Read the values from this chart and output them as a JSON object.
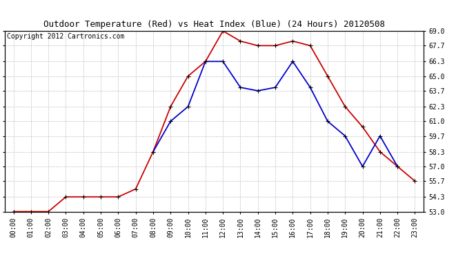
{
  "title": "Outdoor Temperature (Red) vs Heat Index (Blue) (24 Hours) 20120508",
  "copyright_text": "Copyright 2012 Cartronics.com",
  "hours": [
    0,
    1,
    2,
    3,
    4,
    5,
    6,
    7,
    8,
    9,
    10,
    11,
    12,
    13,
    14,
    15,
    16,
    17,
    18,
    19,
    20,
    21,
    22,
    23
  ],
  "temp_red": [
    53.0,
    53.0,
    53.0,
    54.3,
    54.3,
    54.3,
    54.3,
    55.0,
    58.3,
    62.3,
    65.0,
    66.3,
    69.0,
    68.1,
    67.7,
    67.7,
    68.1,
    67.7,
    65.0,
    62.3,
    60.5,
    58.3,
    57.0,
    55.7
  ],
  "heat_blue": [
    null,
    null,
    null,
    null,
    null,
    null,
    null,
    null,
    58.3,
    61.0,
    62.3,
    66.3,
    66.3,
    64.0,
    63.7,
    64.0,
    66.3,
    64.0,
    61.0,
    59.7,
    57.0,
    59.7,
    57.0,
    null
  ],
  "ylim_min": 53.0,
  "ylim_max": 69.0,
  "yticks": [
    53.0,
    54.3,
    55.7,
    57.0,
    58.3,
    59.7,
    61.0,
    62.3,
    63.7,
    65.0,
    66.3,
    67.7,
    69.0
  ],
  "background_color": "#ffffff",
  "grid_color": "#c0c0c0",
  "red_color": "#cc0000",
  "blue_color": "#0000cc",
  "title_fontsize": 9,
  "tick_fontsize": 7,
  "copyright_fontsize": 7
}
